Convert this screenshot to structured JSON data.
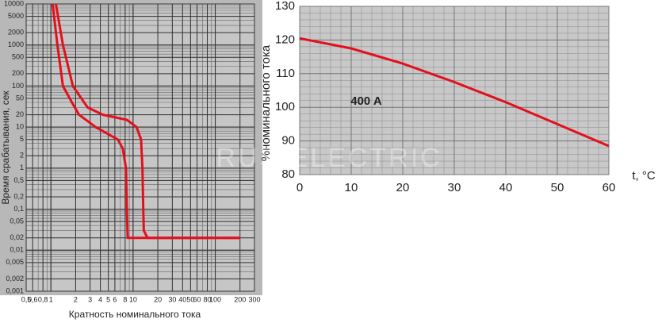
{
  "chart_data": [
    {
      "type": "line",
      "log_x": true,
      "log_y": true,
      "x_label": "Кратность номинального тока",
      "y_label": "Время срабатывания, сек",
      "xlim": [
        0.5,
        300
      ],
      "ylim": [
        0.001,
        10000
      ],
      "xticks": [
        {
          "value": 0.5,
          "label": "0,5"
        },
        {
          "value": 0.6,
          "label": "0,6"
        },
        {
          "value": 0.8,
          "label": "0,8"
        },
        1,
        2,
        3,
        4,
        5,
        6,
        8,
        10,
        20,
        30,
        40,
        50,
        60,
        80,
        100,
        200,
        300
      ],
      "yticks": [
        10000,
        5000,
        2000,
        1000,
        500,
        200,
        100,
        50,
        20,
        10,
        5,
        2,
        1,
        {
          "value": 0.5,
          "label": "0,5"
        },
        {
          "value": 0.2,
          "label": "0,2"
        },
        {
          "value": 0.1,
          "label": "0,1"
        },
        {
          "value": 0.05,
          "label": "0,05"
        },
        {
          "value": 0.02,
          "label": "0,02"
        },
        {
          "value": 0.01,
          "label": "0,01"
        },
        {
          "value": 0.005,
          "label": "0,005"
        },
        {
          "value": 0.002,
          "label": "0,002"
        },
        {
          "value": 0.001,
          "label": "0,001"
        }
      ],
      "grid": true,
      "series": [
        {
          "color": "#e3101c",
          "x": [
            1.05,
            1.2,
            1.4,
            1.8,
            2.2,
            3.5,
            5.5,
            6.5,
            7.5,
            8.2,
            8.4,
            8.6,
            10,
            200
          ],
          "values": [
            10000,
            1000,
            100,
            40,
            20,
            10,
            6,
            5,
            3,
            1,
            0.1,
            0.02,
            0.02,
            0.02
          ]
        },
        {
          "color": "#e3101c",
          "x": [
            1.15,
            1.4,
            1.85,
            2.8,
            4.3,
            8.4,
            11,
            12.5,
            13,
            13.3,
            13.5,
            15,
            200
          ],
          "values": [
            10000,
            1000,
            100,
            30,
            20,
            15,
            10,
            5,
            1,
            0.1,
            0.03,
            0.02,
            0.02
          ]
        }
      ]
    },
    {
      "type": "line",
      "y_label": "%номинального тока",
      "x_label": "t, °C",
      "annotation": "400 A",
      "watermark": "RUS ELECTRIC",
      "xlim": [
        0,
        60
      ],
      "ylim": [
        80,
        130
      ],
      "xticks": [
        0,
        10,
        20,
        30,
        40,
        50,
        60
      ],
      "yticks": [
        80,
        90,
        100,
        110,
        120,
        130
      ],
      "grid": true,
      "series": [
        {
          "color": "#e3101c",
          "x": [
            0,
            10,
            20,
            30,
            40,
            50,
            60
          ],
          "values": [
            120.5,
            117.5,
            113,
            107.5,
            101.5,
            95,
            88.5
          ]
        }
      ]
    }
  ]
}
